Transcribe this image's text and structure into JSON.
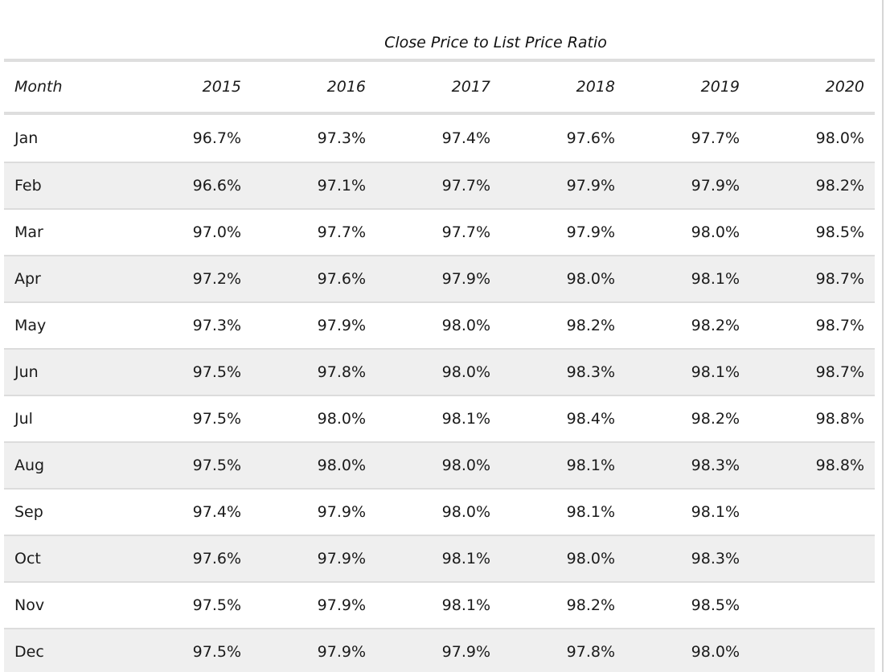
{
  "table": {
    "title": "Close Price to List Price Ratio",
    "columns": [
      "Month",
      "2015",
      "2016",
      "2017",
      "2018",
      "2019",
      "2020"
    ],
    "rows": [
      {
        "month": "Jan",
        "values": [
          "96.7%",
          "97.3%",
          "97.4%",
          "97.6%",
          "97.7%",
          "98.0%"
        ]
      },
      {
        "month": "Feb",
        "values": [
          "96.6%",
          "97.1%",
          "97.7%",
          "97.9%",
          "97.9%",
          "98.2%"
        ]
      },
      {
        "month": "Mar",
        "values": [
          "97.0%",
          "97.7%",
          "97.7%",
          "97.9%",
          "98.0%",
          "98.5%"
        ]
      },
      {
        "month": "Apr",
        "values": [
          "97.2%",
          "97.6%",
          "97.9%",
          "98.0%",
          "98.1%",
          "98.7%"
        ]
      },
      {
        "month": "May",
        "values": [
          "97.3%",
          "97.9%",
          "98.0%",
          "98.2%",
          "98.2%",
          "98.7%"
        ]
      },
      {
        "month": "Jun",
        "values": [
          "97.5%",
          "97.8%",
          "98.0%",
          "98.3%",
          "98.1%",
          "98.7%"
        ]
      },
      {
        "month": "Jul",
        "values": [
          "97.5%",
          "98.0%",
          "98.1%",
          "98.4%",
          "98.2%",
          "98.8%"
        ]
      },
      {
        "month": "Aug",
        "values": [
          "97.5%",
          "98.0%",
          "98.0%",
          "98.1%",
          "98.3%",
          "98.8%"
        ]
      },
      {
        "month": "Sep",
        "values": [
          "97.4%",
          "97.9%",
          "98.0%",
          "98.1%",
          "98.1%",
          ""
        ]
      },
      {
        "month": "Oct",
        "values": [
          "97.6%",
          "97.9%",
          "98.1%",
          "98.0%",
          "98.3%",
          ""
        ]
      },
      {
        "month": "Nov",
        "values": [
          "97.5%",
          "97.9%",
          "98.1%",
          "98.2%",
          "98.5%",
          ""
        ]
      },
      {
        "month": "Dec",
        "values": [
          "97.5%",
          "97.9%",
          "97.9%",
          "97.8%",
          "98.0%",
          ""
        ]
      }
    ]
  },
  "chart_data": {
    "type": "table",
    "title": "Close Price to List Price Ratio",
    "categories": [
      "Jan",
      "Feb",
      "Mar",
      "Apr",
      "May",
      "Jun",
      "Jul",
      "Aug",
      "Sep",
      "Oct",
      "Nov",
      "Dec"
    ],
    "series": [
      {
        "name": "2015",
        "values": [
          96.7,
          96.6,
          97.0,
          97.2,
          97.3,
          97.5,
          97.5,
          97.5,
          97.4,
          97.6,
          97.5,
          97.5
        ]
      },
      {
        "name": "2016",
        "values": [
          97.3,
          97.1,
          97.7,
          97.6,
          97.9,
          97.8,
          98.0,
          98.0,
          97.9,
          97.9,
          97.9,
          97.9
        ]
      },
      {
        "name": "2017",
        "values": [
          97.4,
          97.7,
          97.7,
          97.9,
          98.0,
          98.0,
          98.1,
          98.0,
          98.0,
          98.1,
          98.1,
          97.9
        ]
      },
      {
        "name": "2018",
        "values": [
          97.6,
          97.9,
          97.9,
          98.0,
          98.2,
          98.3,
          98.4,
          98.1,
          98.1,
          98.0,
          98.2,
          97.8
        ]
      },
      {
        "name": "2019",
        "values": [
          97.7,
          97.9,
          98.0,
          98.1,
          98.2,
          98.1,
          98.2,
          98.3,
          98.1,
          98.3,
          98.5,
          98.0
        ]
      },
      {
        "name": "2020",
        "values": [
          98.0,
          98.2,
          98.5,
          98.7,
          98.7,
          98.7,
          98.8,
          98.8,
          null,
          null,
          null,
          null
        ]
      }
    ],
    "unit": "%",
    "xlabel": "Month",
    "layout": {
      "striped_rows": true,
      "value_alignment": "right",
      "header_style": "italic"
    }
  },
  "colors": {
    "background": "#ffffff",
    "stripe": "#efefef",
    "row_separator": "#dcdcdc",
    "header_separator": "#dedede",
    "panel_border": "#d6d6d6",
    "text": "#1a1a1a"
  }
}
